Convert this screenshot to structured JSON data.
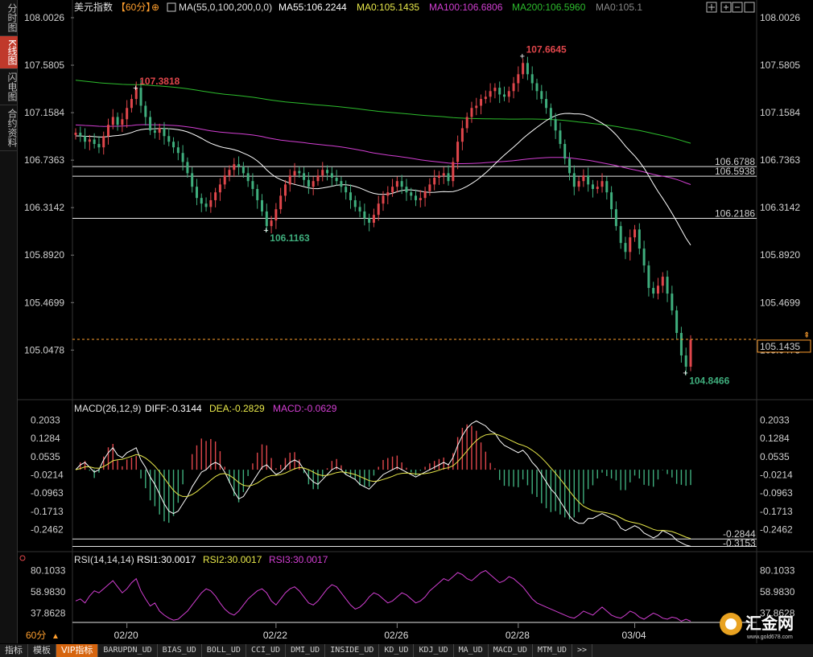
{
  "side_tabs": [
    {
      "label": "分时图",
      "active": false
    },
    {
      "label": "K线图",
      "active": true
    },
    {
      "label": "闪电图",
      "active": false
    },
    {
      "label": "合约资料",
      "active": false
    }
  ],
  "header": {
    "symbol": "美元指数",
    "period": "【60分】",
    "ma_label": "MA(55,0,100,200,0,0)",
    "ma55": "MA55:106.2244",
    "ma0": "MA0:105.1435",
    "ma100": "MA100:106.6806",
    "ma200": "MA200:106.5960",
    "ma0b": "MA0:105.1"
  },
  "macd_header": {
    "label": "MACD(26,12,9)",
    "diff": "DIFF:-0.3144",
    "dea": "DEA:-0.2829",
    "macd": "MACD:-0.0629"
  },
  "rsi_header": {
    "label": "RSI(14,14,14)",
    "rsi1": "RSI1:30.0017",
    "rsi2": "RSI2:30.0017",
    "rsi3": "RSI3:30.0017"
  },
  "period_label": "60分",
  "bottom_tabs": [
    "指标",
    "模板",
    "VIP指标",
    "BARUPDN_UD",
    "BIAS_UD",
    "BOLL_UD",
    "CCI_UD",
    "DMI_UD",
    "INSIDE_UD",
    "KD_UD",
    "KDJ_UD",
    "MA_UD",
    "MACD_UD",
    "MTM_UD",
    ">>"
  ],
  "logo": {
    "name": "汇金网",
    "url": "www.gold678.com"
  },
  "colors": {
    "up": "#e0464b",
    "down": "#3fae7d",
    "ma55": "#ffffff",
    "ma100": "#d33fd3",
    "ma200": "#2dbd2d",
    "dea": "#e8e84a",
    "current": "#ff9f2e"
  },
  "chart_data": {
    "type": "candlestick",
    "price_axis_ticks": [
      "108.0026",
      "107.5805",
      "107.1584",
      "106.7363",
      "106.3142",
      "105.8920",
      "105.4699",
      "105.0478"
    ],
    "price_range": [
      104.85,
      108.0026
    ],
    "x_labels": [
      "02/20",
      "02/22",
      "02/26",
      "02/28",
      "03/04"
    ],
    "annotations": {
      "high1": "107.3818",
      "high2": "107.6645",
      "low1": "106.1163",
      "low2": "104.8466",
      "current": "105.1435"
    },
    "level_lines": [
      "106.6788",
      "106.5938",
      "106.2186"
    ],
    "closes": [
      106.98,
      106.95,
      106.9,
      106.92,
      106.88,
      106.85,
      106.95,
      107.05,
      107.12,
      107.05,
      107.1,
      107.2,
      107.28,
      107.38,
      107.22,
      107.12,
      107.0,
      106.98,
      107.02,
      106.95,
      106.9,
      106.85,
      106.8,
      106.72,
      106.62,
      106.5,
      106.4,
      106.35,
      106.32,
      106.38,
      106.45,
      106.52,
      106.6,
      106.65,
      106.7,
      106.68,
      106.62,
      106.55,
      106.48,
      106.38,
      106.28,
      106.15,
      106.2,
      106.3,
      106.42,
      106.52,
      106.6,
      106.64,
      106.62,
      106.56,
      106.5,
      106.55,
      106.6,
      106.65,
      106.62,
      106.58,
      106.55,
      106.5,
      106.45,
      106.38,
      106.32,
      106.28,
      106.22,
      106.18,
      106.25,
      106.35,
      106.42,
      106.45,
      106.5,
      106.55,
      106.5,
      106.45,
      106.42,
      106.38,
      106.4,
      106.46,
      106.52,
      106.58,
      106.6,
      106.62,
      106.55,
      106.72,
      106.9,
      107.02,
      107.12,
      107.2,
      107.22,
      107.28,
      107.3,
      107.35,
      107.38,
      107.32,
      107.3,
      107.35,
      107.42,
      107.5,
      107.6,
      107.5,
      107.42,
      107.35,
      107.28,
      107.2,
      107.1,
      107.0,
      106.88,
      106.75,
      106.62,
      106.5,
      106.55,
      106.6,
      106.52,
      106.48,
      106.5,
      106.55,
      106.45,
      106.3,
      106.15,
      106.0,
      105.92,
      106.05,
      106.12,
      105.95,
      105.8,
      105.6,
      105.55,
      105.62,
      105.7,
      105.55,
      105.4,
      105.2,
      105.0,
      104.9,
      105.14
    ],
    "macd": {
      "axis_ticks": [
        "0.2033",
        "0.1284",
        "0.0535",
        "-0.0214",
        "-0.0963",
        "-0.1713",
        "-0.2462"
      ],
      "range": [
        -0.33,
        0.215
      ],
      "level_lines": [
        "-0.2844",
        "-0.3153"
      ],
      "diff": [
        0.0,
        0.02,
        0.03,
        0.01,
        -0.01,
        0.0,
        0.04,
        0.07,
        0.09,
        0.06,
        0.05,
        0.07,
        0.08,
        0.09,
        0.04,
        0.01,
        -0.03,
        -0.06,
        -0.1,
        -0.14,
        -0.17,
        -0.18,
        -0.17,
        -0.14,
        -0.11,
        -0.07,
        -0.04,
        -0.01,
        0.0,
        0.02,
        0.03,
        0.02,
        -0.01,
        -0.05,
        -0.09,
        -0.12,
        -0.11,
        -0.08,
        -0.05,
        -0.02,
        0.01,
        0.02,
        0.0,
        -0.02,
        -0.01,
        0.01,
        0.03,
        0.04,
        0.03,
        0.0,
        -0.03,
        -0.05,
        -0.06,
        -0.04,
        -0.02,
        0.0,
        0.01,
        0.0,
        -0.02,
        -0.03,
        -0.04,
        -0.06,
        -0.07,
        -0.08,
        -0.06,
        -0.04,
        -0.02,
        -0.01,
        0.0,
        0.01,
        0.0,
        -0.01,
        -0.02,
        -0.03,
        -0.02,
        -0.01,
        0.0,
        0.01,
        0.02,
        0.03,
        0.02,
        0.05,
        0.1,
        0.14,
        0.17,
        0.19,
        0.2,
        0.19,
        0.18,
        0.16,
        0.15,
        0.12,
        0.1,
        0.09,
        0.08,
        0.07,
        0.08,
        0.06,
        0.03,
        0.01,
        -0.02,
        -0.05,
        -0.08,
        -0.1,
        -0.13,
        -0.16,
        -0.19,
        -0.21,
        -0.22,
        -0.22,
        -0.2,
        -0.2,
        -0.19,
        -0.18,
        -0.19,
        -0.2,
        -0.21,
        -0.24,
        -0.25,
        -0.24,
        -0.23,
        -0.24,
        -0.26,
        -0.27,
        -0.28,
        -0.27,
        -0.25,
        -0.26,
        -0.27,
        -0.29,
        -0.3,
        -0.31,
        -0.3144
      ],
      "dea": [
        0.0,
        0.005,
        0.012,
        0.012,
        0.007,
        0.006,
        0.013,
        0.024,
        0.037,
        0.041,
        0.043,
        0.049,
        0.055,
        0.062,
        0.058,
        0.048,
        0.033,
        0.015,
        -0.008,
        -0.034,
        -0.061,
        -0.085,
        -0.102,
        -0.11,
        -0.11,
        -0.102,
        -0.09,
        -0.074,
        -0.059,
        -0.043,
        -0.028,
        -0.018,
        -0.016,
        -0.023,
        -0.036,
        -0.053,
        -0.064,
        -0.067,
        -0.063,
        -0.055,
        -0.042,
        -0.03,
        -0.024,
        -0.023,
        -0.02,
        -0.014,
        -0.005,
        0.004,
        0.009,
        0.007,
        0.0,
        -0.01,
        -0.02,
        -0.024,
        -0.023,
        -0.018,
        -0.012,
        -0.009,
        -0.011,
        -0.015,
        -0.02,
        -0.028,
        -0.036,
        -0.045,
        -0.048,
        -0.046,
        -0.04,
        -0.034,
        -0.027,
        -0.019,
        -0.015,
        -0.014,
        -0.015,
        -0.018,
        -0.018,
        -0.016,
        -0.013,
        -0.008,
        -0.002,
        0.005,
        0.008,
        0.016,
        0.033,
        0.054,
        0.077,
        0.1,
        0.12,
        0.134,
        0.143,
        0.146,
        0.147,
        0.141,
        0.133,
        0.124,
        0.115,
        0.106,
        0.1,
        0.092,
        0.08,
        0.066,
        0.049,
        0.029,
        0.007,
        -0.015,
        -0.038,
        -0.062,
        -0.088,
        -0.112,
        -0.133,
        -0.15,
        -0.16,
        -0.168,
        -0.172,
        -0.174,
        -0.177,
        -0.182,
        -0.188,
        -0.198,
        -0.208,
        -0.214,
        -0.218,
        -0.222,
        -0.229,
        -0.237,
        -0.245,
        -0.25,
        -0.249,
        -0.251,
        -0.254,
        -0.261,
        -0.269,
        -0.277,
        -0.2829
      ]
    },
    "rsi": {
      "axis_ticks": [
        "80.1033",
        "58.9830",
        "37.8628"
      ],
      "range": [
        28,
        82
      ],
      "values": [
        50,
        52,
        48,
        55,
        60,
        58,
        62,
        66,
        70,
        64,
        58,
        62,
        68,
        72,
        60,
        52,
        45,
        48,
        40,
        36,
        33,
        31,
        32,
        36,
        40,
        46,
        52,
        58,
        62,
        60,
        55,
        48,
        42,
        38,
        36,
        40,
        46,
        52,
        56,
        60,
        62,
        58,
        50,
        46,
        52,
        58,
        62,
        64,
        60,
        54,
        48,
        46,
        50,
        56,
        62,
        66,
        64,
        58,
        52,
        46,
        42,
        44,
        48,
        54,
        58,
        56,
        52,
        48,
        50,
        54,
        58,
        56,
        52,
        48,
        50,
        54,
        60,
        64,
        68,
        72,
        70,
        74,
        78,
        76,
        72,
        70,
        74,
        78,
        80,
        76,
        72,
        68,
        70,
        74,
        72,
        68,
        64,
        58,
        52,
        48,
        46,
        44,
        42,
        40,
        38,
        36,
        34,
        33,
        36,
        40,
        38,
        36,
        40,
        44,
        40,
        36,
        34,
        33,
        36,
        40,
        38,
        34,
        32,
        35,
        38,
        36,
        33,
        32,
        34,
        33,
        30,
        32,
        30
      ]
    }
  }
}
